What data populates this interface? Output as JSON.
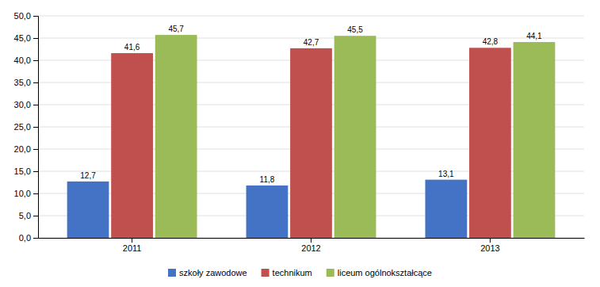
{
  "chart_data": {
    "type": "bar",
    "categories": [
      "2011",
      "2012",
      "2013"
    ],
    "series": [
      {
        "name": "szkoły zawodowe",
        "color": "#4472C4",
        "values": [
          12.7,
          11.8,
          13.1
        ],
        "value_labels": [
          "12,7",
          "11,8",
          "13,1"
        ]
      },
      {
        "name": "technikum",
        "color": "#C0504D",
        "values": [
          41.6,
          42.7,
          42.8
        ],
        "value_labels": [
          "41,6",
          "42,7",
          "42,8"
        ]
      },
      {
        "name": "liceum ogólnokształcące",
        "color": "#9BBB59",
        "values": [
          45.7,
          45.5,
          44.1
        ],
        "value_labels": [
          "45,7",
          "45,5",
          "44,1"
        ]
      }
    ],
    "ylim": [
      0,
      50
    ],
    "yticks": [
      {
        "value": 0,
        "label": "0,0"
      },
      {
        "value": 5,
        "label": "5,0"
      },
      {
        "value": 10,
        "label": "10,0"
      },
      {
        "value": 15,
        "label": "15,0"
      },
      {
        "value": 20,
        "label": "20,0"
      },
      {
        "value": 25,
        "label": "25,0"
      },
      {
        "value": 30,
        "label": "30,0"
      },
      {
        "value": 35,
        "label": "35,0"
      },
      {
        "value": 40,
        "label": "40,0"
      },
      {
        "value": 45,
        "label": "45,0"
      },
      {
        "value": 50,
        "label": "50,0"
      }
    ],
    "grid": true,
    "data_labels": true,
    "legend": "bottom"
  }
}
